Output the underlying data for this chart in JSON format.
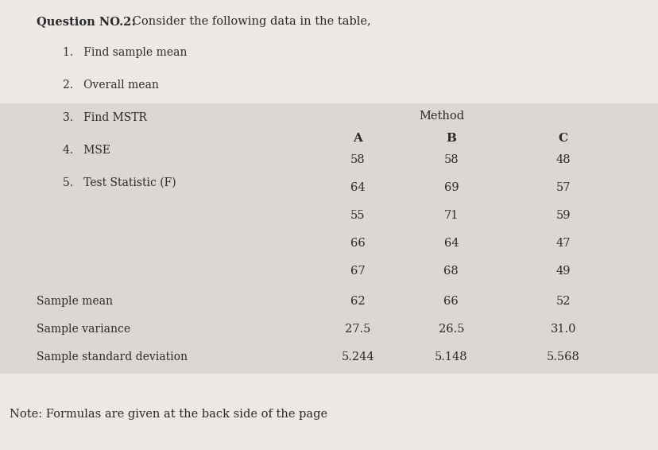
{
  "title_bold": "Question NO.2:",
  "title_normal": " Consider the following data in the table,",
  "bullet_items": [
    "1.   Find sample mean",
    "2.   Overall mean",
    "3.   Find MSTR",
    "4.   MSE",
    "5.   Test Statistic (F)"
  ],
  "method_label": "Method",
  "col_headers": [
    "A",
    "B",
    "C"
  ],
  "data_rows": [
    [
      "58",
      "58",
      "48"
    ],
    [
      "64",
      "69",
      "57"
    ],
    [
      "55",
      "71",
      "59"
    ],
    [
      "66",
      "64",
      "47"
    ],
    [
      "67",
      "68",
      "49"
    ]
  ],
  "stat_labels": [
    "Sample mean",
    "Sample variance",
    "Sample standard deviation"
  ],
  "stat_rows": [
    [
      "62",
      "66",
      "52"
    ],
    [
      "27.5",
      "26.5",
      "31.0"
    ],
    [
      "5.244",
      "5.148",
      "5.568"
    ]
  ],
  "note": "Note: Formulas are given at the back side of the page",
  "page_bg": "#ece9e5",
  "table_bg_left": "#d0cdc8",
  "table_bg_right": "#dbd8d3",
  "text_color": "#2a2a2a",
  "header_color": "#2a2a2a",
  "note_color": "#2a2a2a"
}
